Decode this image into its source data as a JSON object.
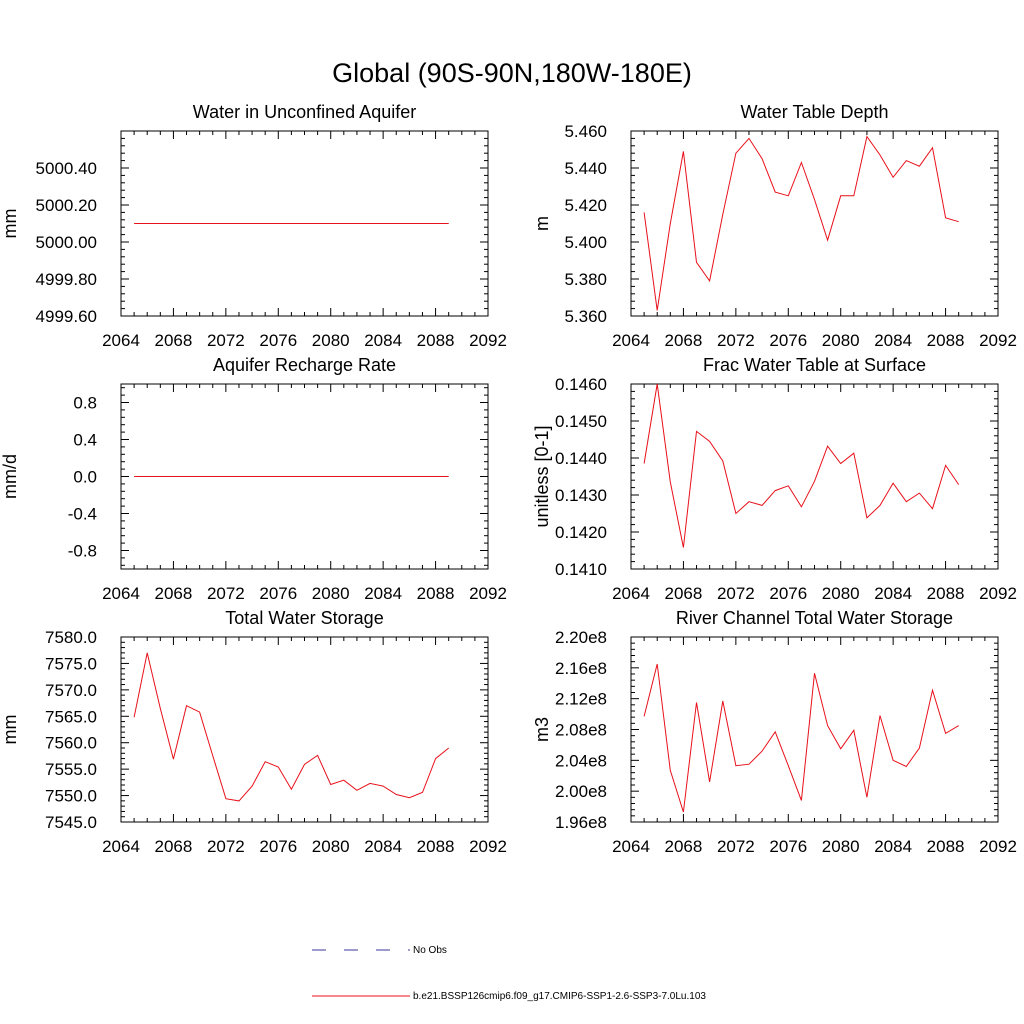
{
  "figure_title": "Global (90S-90N,180W-180E)",
  "legend": {
    "items": [
      {
        "label": "No Obs",
        "color": "#3a3a9a",
        "style": "dashed"
      },
      {
        "label": "b.e21.BSSP126cmip6.f09_g17.CMIP6-SSP1-2.6-SSP3-7.0Lu.103",
        "color": "#e8101a",
        "style": "solid"
      }
    ]
  },
  "chart_data": [
    {
      "type": "line",
      "title": "Water in Unconfined Aquifer",
      "ylabel": "mm",
      "xlim": [
        2064,
        2092
      ],
      "ylim": [
        4999.6,
        5000.6
      ],
      "xticks": [
        2064,
        2068,
        2072,
        2076,
        2080,
        2084,
        2088,
        2092
      ],
      "xtick_labels": [
        "2064",
        "2068",
        "2072",
        "2076",
        "2080",
        "2084",
        "2088",
        "2092"
      ],
      "yticks": [
        4999.6,
        4999.8,
        5000.0,
        5000.2,
        5000.4
      ],
      "ytick_labels": [
        "4999.60",
        "4999.80",
        "5000.00",
        "5000.20",
        "5000.40"
      ],
      "series": [
        {
          "color": "#e8101a",
          "x": [
            2065,
            2066,
            2067,
            2068,
            2069,
            2070,
            2071,
            2072,
            2073,
            2074,
            2075,
            2076,
            2077,
            2078,
            2079,
            2080,
            2081,
            2082,
            2083,
            2084,
            2085,
            2086,
            2087,
            2088,
            2089
          ],
          "y": [
            5000.1,
            5000.1,
            5000.1,
            5000.1,
            5000.1,
            5000.1,
            5000.1,
            5000.1,
            5000.1,
            5000.1,
            5000.1,
            5000.1,
            5000.1,
            5000.1,
            5000.1,
            5000.1,
            5000.1,
            5000.1,
            5000.1,
            5000.1,
            5000.1,
            5000.1,
            5000.1,
            5000.1,
            5000.1
          ]
        }
      ]
    },
    {
      "type": "line",
      "title": "Water Table Depth",
      "ylabel": "m",
      "xlim": [
        2064,
        2092
      ],
      "ylim": [
        5.36,
        5.46
      ],
      "xticks": [
        2064,
        2068,
        2072,
        2076,
        2080,
        2084,
        2088,
        2092
      ],
      "xtick_labels": [
        "2064",
        "2068",
        "2072",
        "2076",
        "2080",
        "2084",
        "2088",
        "2092"
      ],
      "yticks": [
        5.36,
        5.38,
        5.4,
        5.42,
        5.44,
        5.46
      ],
      "ytick_labels": [
        "5.360",
        "5.380",
        "5.400",
        "5.420",
        "5.440",
        "5.460"
      ],
      "series": [
        {
          "color": "#e8101a",
          "x": [
            2065,
            2066,
            2067,
            2068,
            2069,
            2070,
            2071,
            2072,
            2073,
            2074,
            2075,
            2076,
            2077,
            2078,
            2079,
            2080,
            2081,
            2082,
            2083,
            2084,
            2085,
            2086,
            2087,
            2088,
            2089
          ],
          "y": [
            5.416,
            5.363,
            5.41,
            5.449,
            5.389,
            5.379,
            5.415,
            5.448,
            5.456,
            5.445,
            5.427,
            5.425,
            5.443,
            5.423,
            5.401,
            5.425,
            5.425,
            5.457,
            5.447,
            5.435,
            5.444,
            5.441,
            5.451,
            5.413,
            5.411
          ]
        }
      ]
    },
    {
      "type": "line",
      "title": "Aquifer Recharge Rate",
      "ylabel": "mm/d",
      "xlim": [
        2064,
        2092
      ],
      "ylim": [
        -1.0,
        1.0
      ],
      "xticks": [
        2064,
        2068,
        2072,
        2076,
        2080,
        2084,
        2088,
        2092
      ],
      "xtick_labels": [
        "2064",
        "2068",
        "2072",
        "2076",
        "2080",
        "2084",
        "2088",
        "2092"
      ],
      "yticks": [
        -0.8,
        -0.4,
        0.0,
        0.4,
        0.8
      ],
      "ytick_labels": [
        "-0.8",
        "-0.4",
        "0.0",
        "0.4",
        "0.8"
      ],
      "series": [
        {
          "color": "#e8101a",
          "x": [
            2065,
            2066,
            2067,
            2068,
            2069,
            2070,
            2071,
            2072,
            2073,
            2074,
            2075,
            2076,
            2077,
            2078,
            2079,
            2080,
            2081,
            2082,
            2083,
            2084,
            2085,
            2086,
            2087,
            2088,
            2089
          ],
          "y": [
            0,
            0,
            0,
            0,
            0,
            0,
            0,
            0,
            0,
            0,
            0,
            0,
            0,
            0,
            0,
            0,
            0,
            0,
            0,
            0,
            0,
            0,
            0,
            0,
            0
          ]
        }
      ]
    },
    {
      "type": "line",
      "title": "Frac Water Table at Surface",
      "ylabel": "unitless [0-1]",
      "xlim": [
        2064,
        2092
      ],
      "ylim": [
        0.141,
        0.146
      ],
      "xticks": [
        2064,
        2068,
        2072,
        2076,
        2080,
        2084,
        2088,
        2092
      ],
      "xtick_labels": [
        "2064",
        "2068",
        "2072",
        "2076",
        "2080",
        "2084",
        "2088",
        "2092"
      ],
      "yticks": [
        0.141,
        0.142,
        0.143,
        0.144,
        0.145,
        0.146
      ],
      "ytick_labels": [
        "0.1410",
        "0.1420",
        "0.1430",
        "0.1440",
        "0.1450",
        "0.1460"
      ],
      "series": [
        {
          "color": "#e8101a",
          "x": [
            2065,
            2066,
            2067,
            2068,
            2069,
            2070,
            2071,
            2072,
            2073,
            2074,
            2075,
            2076,
            2077,
            2078,
            2079,
            2080,
            2081,
            2082,
            2083,
            2084,
            2085,
            2086,
            2087,
            2088,
            2089
          ],
          "y": [
            0.14385,
            0.146,
            0.14335,
            0.14158,
            0.14472,
            0.14445,
            0.14392,
            0.1425,
            0.14282,
            0.14272,
            0.14312,
            0.14325,
            0.14268,
            0.14337,
            0.14432,
            0.14385,
            0.14413,
            0.14238,
            0.14272,
            0.14332,
            0.14282,
            0.14305,
            0.14263,
            0.1438,
            0.14328
          ]
        }
      ]
    },
    {
      "type": "line",
      "title": "Total Water Storage",
      "ylabel": "mm",
      "xlim": [
        2064,
        2092
      ],
      "ylim": [
        7545.0,
        7580.0
      ],
      "xticks": [
        2064,
        2068,
        2072,
        2076,
        2080,
        2084,
        2088,
        2092
      ],
      "xtick_labels": [
        "2064",
        "2068",
        "2072",
        "2076",
        "2080",
        "2084",
        "2088",
        "2092"
      ],
      "yticks": [
        7545,
        7550,
        7555,
        7560,
        7565,
        7570,
        7575,
        7580
      ],
      "ytick_labels": [
        "7545.0",
        "7550.0",
        "7555.0",
        "7560.0",
        "7565.0",
        "7570.0",
        "7575.0",
        "7580.0"
      ],
      "series": [
        {
          "color": "#e8101a",
          "x": [
            2065,
            2066,
            2067,
            2068,
            2069,
            2070,
            2071,
            2072,
            2073,
            2074,
            2075,
            2076,
            2077,
            2078,
            2079,
            2080,
            2081,
            2082,
            2083,
            2084,
            2085,
            2086,
            2087,
            2088,
            2089
          ],
          "y": [
            7564.8,
            7577.0,
            7566.5,
            7556.9,
            7567.0,
            7565.8,
            7557.5,
            7549.4,
            7549.0,
            7551.8,
            7556.4,
            7555.4,
            7551.2,
            7555.9,
            7557.6,
            7552.1,
            7552.9,
            7551.0,
            7552.3,
            7551.8,
            7550.2,
            7549.6,
            7550.6,
            7557.0,
            7559.0
          ]
        }
      ]
    },
    {
      "type": "line",
      "title": "River Channel Total Water Storage",
      "ylabel": "m3",
      "xlim": [
        2064,
        2092
      ],
      "ylim": [
        196000000.0,
        220000000.0
      ],
      "xticks": [
        2064,
        2068,
        2072,
        2076,
        2080,
        2084,
        2088,
        2092
      ],
      "xtick_labels": [
        "2064",
        "2068",
        "2072",
        "2076",
        "2080",
        "2084",
        "2088",
        "2092"
      ],
      "yticks": [
        196000000.0,
        200000000.0,
        204000000.0,
        208000000.0,
        212000000.0,
        216000000.0,
        220000000.0
      ],
      "ytick_labels": [
        "1.96e8",
        "2.00e8",
        "2.04e8",
        "2.08e8",
        "2.12e8",
        "2.16e8",
        "2.20e8"
      ],
      "series": [
        {
          "color": "#e8101a",
          "x": [
            2065,
            2066,
            2067,
            2068,
            2069,
            2070,
            2071,
            2072,
            2073,
            2074,
            2075,
            2076,
            2077,
            2078,
            2079,
            2080,
            2081,
            2082,
            2083,
            2084,
            2085,
            2086,
            2087,
            2088,
            2089
          ],
          "y": [
            209700000.0,
            216500000.0,
            202700000.0,
            197300000.0,
            211500000.0,
            201200000.0,
            211700000.0,
            203300000.0,
            203500000.0,
            205200000.0,
            207700000.0,
            203300000.0,
            198800000.0,
            215300000.0,
            208500000.0,
            205500000.0,
            207900000.0,
            199200000.0,
            209800000.0,
            204000000.0,
            203200000.0,
            205600000.0,
            213100000.0,
            207500000.0,
            208500000.0
          ]
        }
      ]
    }
  ]
}
